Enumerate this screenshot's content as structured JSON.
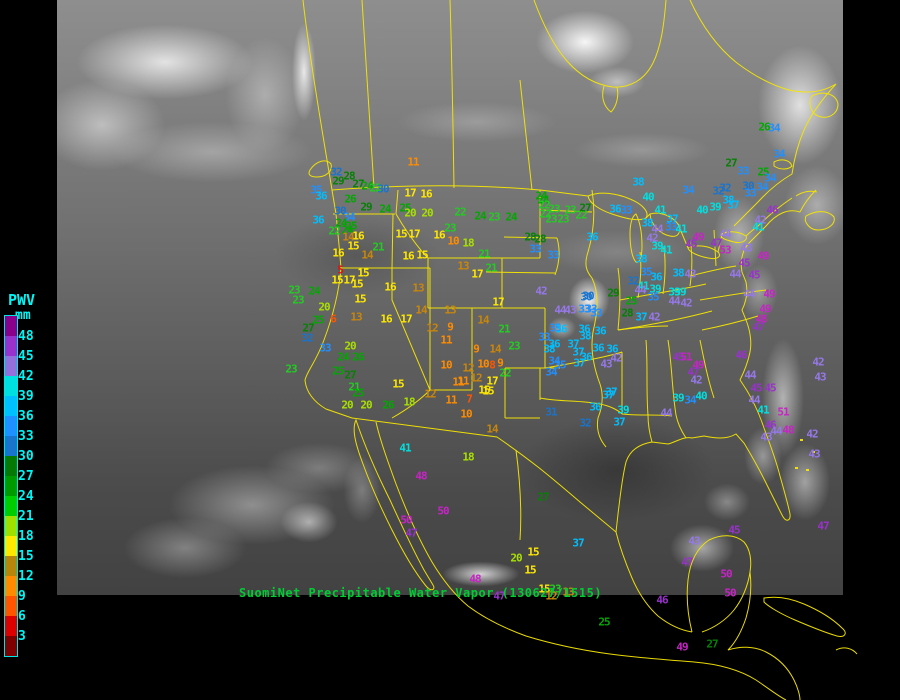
{
  "legend": {
    "title": "PWV",
    "units": "mm",
    "text_color": "#00F5F5",
    "tick_labels": [
      "48",
      "45",
      "42",
      "39",
      "36",
      "33",
      "30",
      "27",
      "24",
      "21",
      "18",
      "15",
      "12",
      "9",
      "6",
      "3"
    ],
    "cell_colors": [
      "#8B008B",
      "#9932CC",
      "#9370DB",
      "#00E0E0",
      "#00BFFF",
      "#1E90FF",
      "#1874CD",
      "#067806",
      "#009900",
      "#00CC00",
      "#A0E000",
      "#FFE800",
      "#B8860B",
      "#FF8C00",
      "#FF5500",
      "#DD0000",
      "#7E0000"
    ]
  },
  "caption": {
    "text": "SuomiNet Precipitable Water Vapor (130627/1515)",
    "color": "#00CC33"
  },
  "map": {
    "outline_color": "#F5E600"
  },
  "chart_data": {
    "type": "map-overlay",
    "title": "SuomiNet Precipitable Water Vapor (130627/1515)",
    "units": "mm",
    "legend_range": [
      3,
      48
    ],
    "value_band_colors": [
      "#E01010",
      "#FF5500",
      "#FF8C00",
      "#C8860B",
      "#FFE800",
      "#A8E000",
      "#22CC22",
      "#00A800",
      "#068006",
      "#1874CD",
      "#2090FF",
      "#00BFFF",
      "#00E0E0",
      "#9678E8",
      "#9932CC",
      "#C724C7"
    ],
    "stations": [
      [
        32,
        336,
        172
      ],
      [
        28,
        349,
        176
      ],
      [
        29,
        338,
        181
      ],
      [
        27,
        358,
        184
      ],
      [
        24,
        367,
        186
      ],
      [
        22,
        375,
        188
      ],
      [
        30,
        383,
        189
      ],
      [
        35,
        316,
        190
      ],
      [
        36,
        321,
        196
      ],
      [
        26,
        350,
        199
      ],
      [
        29,
        366,
        207
      ],
      [
        30,
        340,
        211
      ],
      [
        34,
        349,
        217
      ],
      [
        36,
        318,
        220
      ],
      [
        24,
        341,
        223
      ],
      [
        25,
        351,
        226
      ],
      [
        22,
        334,
        231
      ],
      [
        24,
        347,
        230
      ],
      [
        11,
        413,
        162
      ],
      [
        17,
        410,
        193
      ],
      [
        16,
        426,
        194
      ],
      [
        24,
        385,
        209
      ],
      [
        25,
        405,
        208
      ],
      [
        20,
        410,
        213
      ],
      [
        20,
        427,
        213
      ],
      [
        22,
        460,
        212
      ],
      [
        24,
        480,
        216
      ],
      [
        23,
        494,
        217
      ],
      [
        24,
        511,
        217
      ],
      [
        24,
        543,
        200
      ],
      [
        22,
        545,
        214
      ],
      [
        23,
        551,
        219
      ],
      [
        23,
        563,
        219
      ],
      [
        22,
        581,
        215
      ],
      [
        14,
        348,
        237
      ],
      [
        16,
        358,
        236
      ],
      [
        15,
        353,
        246
      ],
      [
        15,
        401,
        234
      ],
      [
        17,
        414,
        234
      ],
      [
        16,
        439,
        235
      ],
      [
        21,
        378,
        247
      ],
      [
        14,
        367,
        255
      ],
      [
        16,
        408,
        256
      ],
      [
        15,
        422,
        255
      ],
      [
        23,
        450,
        228
      ],
      [
        10,
        453,
        241
      ],
      [
        18,
        468,
        243
      ],
      [
        13,
        463,
        266
      ],
      [
        16,
        338,
        253
      ],
      [
        5,
        340,
        270
      ],
      [
        15,
        363,
        273
      ],
      [
        28,
        540,
        239
      ],
      [
        33,
        553,
        255
      ],
      [
        21,
        484,
        254
      ],
      [
        21,
        491,
        268
      ],
      [
        17,
        477,
        274
      ],
      [
        23,
        294,
        290
      ],
      [
        24,
        314,
        291
      ],
      [
        23,
        298,
        300
      ],
      [
        20,
        324,
        307
      ],
      [
        25,
        318,
        320
      ],
      [
        27,
        308,
        328
      ],
      [
        6,
        333,
        319
      ],
      [
        32,
        307,
        338
      ],
      [
        33,
        325,
        348
      ],
      [
        20,
        350,
        346
      ],
      [
        24,
        343,
        357
      ],
      [
        26,
        358,
        357
      ],
      [
        23,
        291,
        369
      ],
      [
        25,
        338,
        371
      ],
      [
        27,
        350,
        375
      ],
      [
        21,
        354,
        387
      ],
      [
        25,
        358,
        393
      ],
      [
        20,
        366,
        405
      ],
      [
        26,
        388,
        405
      ],
      [
        18,
        409,
        402
      ],
      [
        20,
        347,
        405
      ],
      [
        15,
        337,
        280
      ],
      [
        17,
        349,
        280
      ],
      [
        15,
        357,
        284
      ],
      [
        16,
        390,
        287
      ],
      [
        13,
        418,
        288
      ],
      [
        15,
        360,
        299
      ],
      [
        13,
        356,
        317
      ],
      [
        16,
        386,
        319
      ],
      [
        17,
        406,
        319
      ],
      [
        15,
        398,
        384
      ],
      [
        41,
        405,
        448
      ],
      [
        48,
        421,
        476
      ],
      [
        50,
        443,
        511
      ],
      [
        50,
        406,
        520
      ],
      [
        47,
        411,
        533
      ],
      [
        14,
        421,
        310
      ],
      [
        13,
        450,
        310
      ],
      [
        12,
        432,
        328
      ],
      [
        9,
        450,
        327
      ],
      [
        11,
        446,
        340
      ],
      [
        14,
        483,
        320
      ],
      [
        17,
        498,
        302
      ],
      [
        21,
        504,
        329
      ],
      [
        9,
        476,
        349
      ],
      [
        14,
        495,
        349
      ],
      [
        23,
        514,
        346
      ],
      [
        10,
        446,
        365
      ],
      [
        12,
        468,
        368
      ],
      [
        22,
        505,
        373
      ],
      [
        10,
        483,
        364
      ],
      [
        8,
        492,
        365
      ],
      [
        9,
        500,
        363
      ],
      [
        11,
        458,
        382
      ],
      [
        15,
        484,
        390
      ],
      [
        12,
        430,
        394
      ],
      [
        11,
        451,
        400
      ],
      [
        7,
        469,
        399
      ],
      [
        10,
        466,
        414
      ],
      [
        14,
        492,
        429
      ],
      [
        18,
        468,
        457
      ],
      [
        11,
        463,
        381
      ],
      [
        12,
        476,
        378
      ],
      [
        17,
        492,
        381
      ],
      [
        15,
        488,
        391
      ],
      [
        42,
        541,
        291
      ],
      [
        30,
        588,
        296
      ],
      [
        44,
        560,
        310
      ],
      [
        43,
        570,
        310
      ],
      [
        33,
        591,
        309
      ],
      [
        35,
        555,
        328
      ],
      [
        36,
        561,
        329
      ],
      [
        33,
        544,
        337
      ],
      [
        36,
        554,
        344
      ],
      [
        37,
        573,
        344
      ],
      [
        38,
        549,
        349
      ],
      [
        37,
        578,
        352
      ],
      [
        36,
        586,
        357
      ],
      [
        34,
        554,
        361
      ],
      [
        35,
        560,
        365
      ],
      [
        37,
        579,
        363
      ],
      [
        34,
        551,
        372
      ],
      [
        36,
        612,
        349
      ],
      [
        36,
        600,
        331
      ],
      [
        31,
        551,
        412
      ],
      [
        32,
        585,
        423
      ],
      [
        37,
        611,
        392
      ],
      [
        37,
        619,
        422
      ],
      [
        39,
        623,
        410
      ],
      [
        27,
        543,
        497
      ],
      [
        24,
        541,
        196
      ],
      [
        22,
        544,
        205
      ],
      [
        23,
        554,
        209
      ],
      [
        23,
        570,
        210
      ],
      [
        27,
        585,
        208
      ],
      [
        28,
        530,
        237
      ],
      [
        33,
        535,
        249
      ],
      [
        36,
        592,
        237
      ],
      [
        38,
        638,
        182
      ],
      [
        40,
        648,
        197
      ],
      [
        36,
        615,
        209
      ],
      [
        33,
        626,
        210
      ],
      [
        41,
        660,
        210
      ],
      [
        37,
        672,
        219
      ],
      [
        38,
        647,
        223
      ],
      [
        44,
        657,
        229
      ],
      [
        33,
        671,
        227
      ],
      [
        42,
        652,
        238
      ],
      [
        39,
        657,
        246
      ],
      [
        41,
        666,
        250
      ],
      [
        34,
        688,
        190
      ],
      [
        32,
        718,
        191
      ],
      [
        38,
        728,
        200
      ],
      [
        37,
        733,
        205
      ],
      [
        40,
        702,
        210
      ],
      [
        39,
        715,
        207
      ],
      [
        35,
        646,
        272
      ],
      [
        38,
        641,
        259
      ],
      [
        36,
        656,
        277
      ],
      [
        32,
        633,
        281
      ],
      [
        41,
        643,
        286
      ],
      [
        39,
        655,
        289
      ],
      [
        49,
        698,
        237
      ],
      [
        45,
        691,
        244
      ],
      [
        47,
        716,
        243
      ],
      [
        44,
        725,
        234
      ],
      [
        53,
        725,
        250
      ],
      [
        41,
        681,
        229
      ],
      [
        43,
        746,
        248
      ],
      [
        49,
        763,
        256
      ],
      [
        45,
        744,
        263
      ],
      [
        44,
        735,
        274
      ],
      [
        45,
        754,
        275
      ],
      [
        38,
        678,
        273
      ],
      [
        43,
        690,
        274
      ],
      [
        39,
        680,
        292
      ],
      [
        44,
        749,
        294
      ],
      [
        33,
        743,
        171
      ],
      [
        25,
        763,
        172
      ],
      [
        34,
        770,
        178
      ],
      [
        32,
        725,
        188
      ],
      [
        30,
        748,
        186
      ],
      [
        33,
        750,
        193
      ],
      [
        34,
        762,
        187
      ],
      [
        46,
        772,
        210
      ],
      [
        42,
        760,
        220
      ],
      [
        41,
        758,
        227
      ],
      [
        26,
        764,
        127
      ],
      [
        34,
        774,
        128
      ],
      [
        34,
        779,
        154
      ],
      [
        27,
        731,
        163
      ],
      [
        30,
        586,
        297
      ],
      [
        29,
        613,
        293
      ],
      [
        33,
        584,
        309
      ],
      [
        33,
        596,
        313
      ],
      [
        25,
        631,
        301
      ],
      [
        28,
        627,
        313
      ],
      [
        36,
        584,
        329
      ],
      [
        38,
        585,
        336
      ],
      [
        36,
        598,
        348
      ],
      [
        37,
        641,
        317
      ],
      [
        42,
        654,
        317
      ],
      [
        44,
        674,
        301
      ],
      [
        42,
        686,
        303
      ],
      [
        39,
        674,
        292
      ],
      [
        35,
        653,
        297
      ],
      [
        42,
        616,
        358
      ],
      [
        43,
        606,
        364
      ],
      [
        45,
        678,
        357
      ],
      [
        51,
        686,
        357
      ],
      [
        49,
        698,
        365
      ],
      [
        47,
        693,
        372
      ],
      [
        42,
        696,
        380
      ],
      [
        44,
        640,
        290
      ],
      [
        49,
        769,
        294
      ],
      [
        49,
        765,
        309
      ],
      [
        48,
        761,
        319
      ],
      [
        47,
        758,
        327
      ],
      [
        46,
        741,
        355
      ],
      [
        44,
        750,
        375
      ],
      [
        45,
        756,
        388
      ],
      [
        45,
        770,
        388
      ],
      [
        44,
        754,
        400
      ],
      [
        41,
        763,
        410
      ],
      [
        37,
        608,
        395
      ],
      [
        36,
        595,
        407
      ],
      [
        39,
        678,
        398
      ],
      [
        40,
        701,
        396
      ],
      [
        44,
        666,
        413
      ],
      [
        34,
        690,
        400
      ],
      [
        46,
        770,
        425
      ],
      [
        44,
        776,
        431
      ],
      [
        48,
        788,
        430
      ],
      [
        43,
        766,
        437
      ],
      [
        51,
        783,
        412
      ],
      [
        42,
        818,
        362
      ],
      [
        43,
        820,
        377
      ],
      [
        42,
        812,
        434
      ],
      [
        43,
        814,
        454
      ],
      [
        20,
        516,
        558
      ],
      [
        15,
        533,
        552
      ],
      [
        15,
        530,
        570
      ],
      [
        37,
        578,
        543
      ],
      [
        48,
        475,
        579
      ],
      [
        47,
        499,
        596
      ],
      [
        15,
        544,
        589
      ],
      [
        23,
        555,
        589
      ],
      [
        13,
        568,
        592
      ],
      [
        12,
        551,
        596
      ],
      [
        25,
        604,
        622
      ],
      [
        27,
        712,
        644
      ],
      [
        49,
        682,
        647
      ],
      [
        46,
        662,
        600
      ],
      [
        50,
        726,
        574
      ],
      [
        50,
        730,
        593
      ],
      [
        47,
        687,
        562
      ],
      [
        43,
        694,
        541
      ],
      [
        45,
        734,
        530
      ],
      [
        47,
        823,
        526
      ]
    ]
  }
}
